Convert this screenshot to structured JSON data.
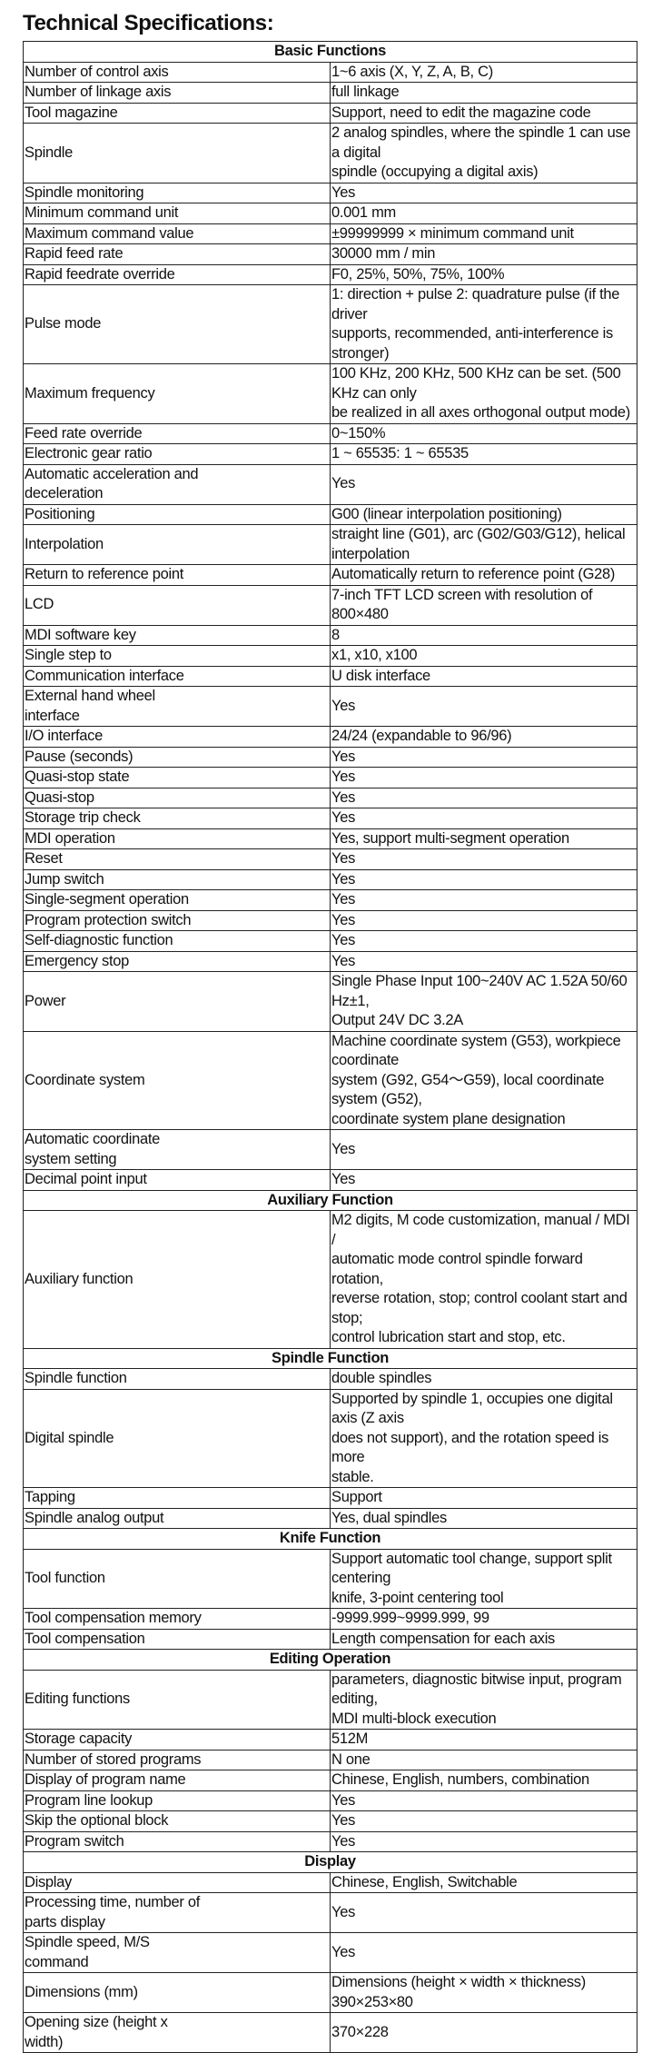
{
  "title": "Technical Specifications:",
  "sections": [
    {
      "heading": "Basic Functions",
      "rows": [
        [
          "Number of control axis",
          "1~6 axis (X, Y, Z, A, B, C)"
        ],
        [
          "Number of linkage axis",
          "full linkage"
        ],
        [
          "Tool magazine",
          "Support, need to edit the magazine code"
        ],
        [
          "Spindle",
          "2 analog spindles, where the spindle 1 can use a digital\nspindle (occupying a digital axis)"
        ],
        [
          "Spindle monitoring",
          "Yes"
        ],
        [
          "Minimum command unit",
          "0.001 mm"
        ],
        [
          "Maximum command value",
          "±99999999 × minimum command unit"
        ],
        [
          "Rapid feed rate",
          "30000 mm / min"
        ],
        [
          "Rapid feedrate override",
          "F0, 25%, 50%, 75%, 100%"
        ],
        [
          "Pulse mode",
          "1: direction + pulse 2: quadrature pulse (if the driver\nsupports, recommended, anti-interference is stronger)"
        ],
        [
          "Maximum frequency",
          "100 KHz, 200 KHz, 500 KHz can be set. (500 KHz can only\nbe realized in all axes orthogonal output mode)"
        ],
        [
          "Feed rate override",
          "0~150%"
        ],
        [
          "Electronic gear ratio",
          "1 ~ 65535: 1 ~ 65535"
        ],
        [
          "Automatic acceleration and\ndeceleration",
          "Yes"
        ],
        [
          "Positioning",
          "G00 (linear interpolation positioning)"
        ],
        [
          "Interpolation",
          "straight line (G01), arc (G02/G03/G12), helical\ninterpolation"
        ],
        [
          "Return to reference point",
          "Automatically return to reference point (G28)"
        ],
        [
          "LCD",
          "7-inch TFT LCD screen with resolution of 800×480"
        ],
        [
          "MDI software key",
          "8"
        ],
        [
          "Single step to",
          "x1, x10, x100"
        ],
        [
          "Communication interface",
          "U disk interface"
        ],
        [
          "External hand wheel\ninterface",
          "Yes"
        ],
        [
          "I/O interface",
          "24/24 (expandable to 96/96)"
        ],
        [
          "Pause (seconds)",
          "Yes"
        ],
        [
          "Quasi-stop state",
          "Yes"
        ],
        [
          "Quasi-stop",
          "Yes"
        ],
        [
          "Storage trip check",
          "Yes"
        ],
        [
          "MDI operation",
          "Yes, support multi-segment operation"
        ],
        [
          "Reset",
          "Yes"
        ],
        [
          "Jump switch",
          "Yes"
        ],
        [
          "Single-segment operation",
          "Yes"
        ],
        [
          "Program protection switch",
          "Yes"
        ],
        [
          "Self-diagnostic function",
          "Yes"
        ],
        [
          "Emergency stop",
          "Yes"
        ],
        [
          "Power",
          "Single Phase Input 100~240V AC 1.52A 50/60 Hz±1,\nOutput 24V DC 3.2A"
        ],
        [
          "Coordinate system",
          "Machine coordinate system (G53), workpiece coordinate\nsystem (G92, G54～G59), local coordinate system (G52),\ncoordinate system plane designation"
        ],
        [
          "Automatic coordinate\nsystem setting",
          "Yes"
        ],
        [
          "Decimal point input",
          "Yes"
        ]
      ]
    },
    {
      "heading": "Auxiliary Function",
      "rows": [
        [
          "Auxiliary function",
          "M2 digits, M code customization, manual / MDI /\nautomatic mode control spindle forward rotation,\nreverse rotation, stop; control coolant start and stop;\ncontrol lubrication start and stop, etc."
        ]
      ]
    },
    {
      "heading": "Spindle Function",
      "rows": [
        [
          "Spindle function",
          "double spindles"
        ],
        [
          "Digital spindle",
          "Supported by spindle 1, occupies one digital axis (Z axis\ndoes not support), and the rotation speed is more\nstable."
        ],
        [
          "Tapping",
          "Support"
        ],
        [
          "Spindle analog output",
          "Yes, dual spindles"
        ]
      ]
    },
    {
      "heading": "Knife Function",
      "rows": [
        [
          "Tool function",
          "Support automatic tool change, support split centering\nknife, 3-point centering tool"
        ],
        [
          "Tool compensation memory",
          "-9999.999~9999.999, 99"
        ],
        [
          "Tool compensation",
          "Length compensation for each axis"
        ]
      ]
    },
    {
      "heading": "Editing Operation",
      "rows": [
        [
          "Editing functions",
          "parameters, diagnostic bitwise input, program editing,\nMDI multi-block execution"
        ],
        [
          "Storage capacity",
          "512M"
        ],
        [
          "Number of stored programs",
          "N one"
        ],
        [
          "Display of program name",
          "Chinese, English, numbers, combination"
        ],
        [
          "Program line lookup",
          "Yes"
        ],
        [
          "Skip the optional block",
          "Yes"
        ],
        [
          "Program switch",
          "Yes"
        ]
      ]
    },
    {
      "heading": "Display",
      "rows": [
        [
          "Display",
          "Chinese, English, Switchable"
        ],
        [
          "Processing time, number of\nparts display",
          "Yes"
        ],
        [
          "Spindle speed, M/S\ncommand",
          "Yes"
        ],
        [
          "Dimensions (mm)",
          "Dimensions (height × width × thickness) 390×253×80"
        ],
        [
          "Opening size (height x\nwidth)",
          "370×228"
        ]
      ]
    }
  ]
}
